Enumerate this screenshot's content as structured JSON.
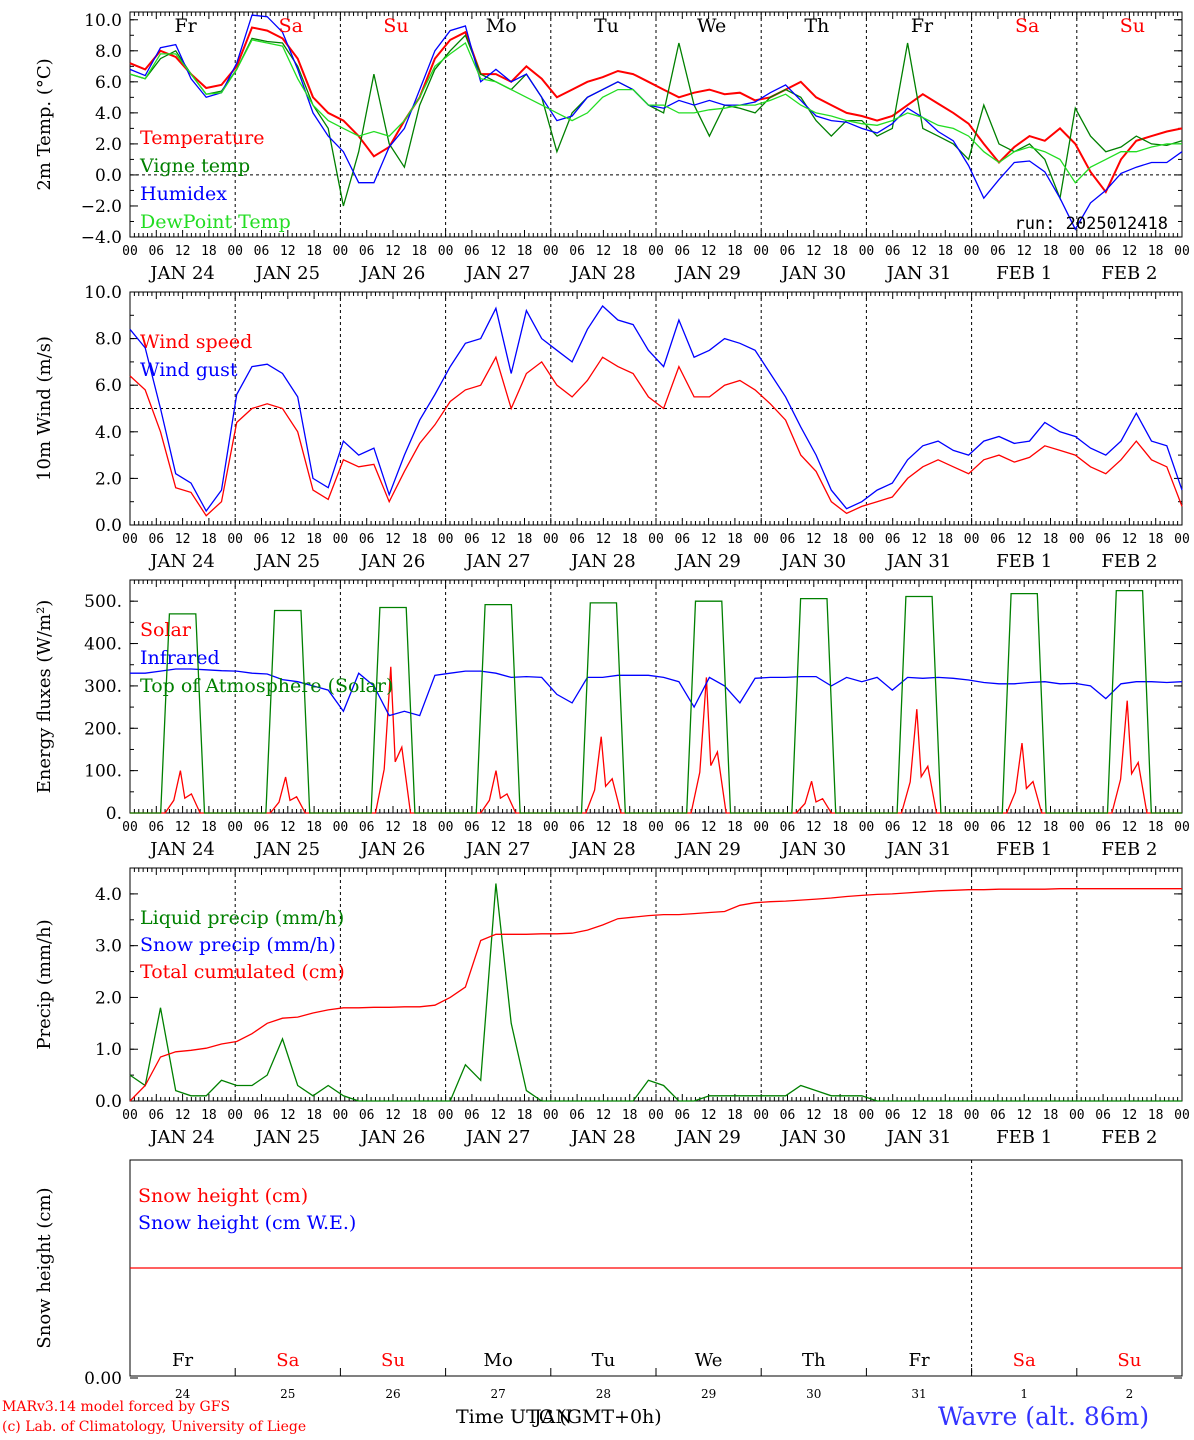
{
  "colors": {
    "red": "#ff0000",
    "green": "#008000",
    "blue": "#0000ff",
    "light_green": "#22dd22",
    "footer_blue": "#3333ff"
  },
  "days": [
    "Fr",
    "Sa",
    "Su",
    "Mo",
    "Tu",
    "We",
    "Th",
    "Fr",
    "Sa",
    "Su"
  ],
  "weekend": [
    false,
    true,
    true,
    false,
    false,
    false,
    false,
    false,
    true,
    true
  ],
  "dates": [
    "JAN 24",
    "JAN 25",
    "JAN 26",
    "JAN 27",
    "JAN 28",
    "JAN 29",
    "JAN 30",
    "JAN 31",
    "FEB  1",
    "FEB  2"
  ],
  "day_numbers": [
    "24",
    "25",
    "26",
    "27",
    "28",
    "29",
    "30",
    "31",
    "1",
    "2"
  ],
  "hour_labels": [
    "00",
    "06",
    "12",
    "18"
  ],
  "hour_label_last": "00",
  "footer": {
    "model": "MARv3.14 model forced by GFS",
    "lab": "(c) Lab. of Climatology, University of Liege",
    "time_axis": "Time UTC (GMT+0h)",
    "time_axis_overlap": "JAN",
    "station": "Wavre (alt. 86m)"
  },
  "chart_data": [
    {
      "type": "line",
      "ylabel": "2m Temp. (°C)",
      "ylim": [
        -4,
        10.5
      ],
      "yticks": [
        "10.0",
        "8.0",
        "6.0",
        "4.0",
        "2.0",
        "0.0",
        "−2.0",
        "−4.0"
      ],
      "run": "run: 2025012418",
      "x_hours_step": 6,
      "series": [
        {
          "name": "Temperature",
          "color": "#ff0000",
          "values": [
            7.2,
            6.8,
            8.0,
            7.6,
            6.5,
            5.6,
            5.8,
            7.0,
            9.5,
            9.3,
            8.8,
            7.5,
            5.0,
            4.0,
            3.5,
            2.5,
            1.2,
            1.8,
            3.5,
            5.0,
            7.5,
            8.7,
            9.2,
            6.5,
            6.5,
            6.0,
            7.0,
            6.2,
            5.0,
            5.5,
            6.0,
            6.3,
            6.7,
            6.5,
            6.0,
            5.5,
            5.0,
            5.3,
            5.5,
            5.2,
            5.3,
            4.8,
            5.0,
            5.5,
            6.0,
            5.0,
            4.5,
            4.0,
            3.8,
            3.5,
            3.8,
            4.5,
            5.2,
            4.6,
            4.0,
            3.3,
            2.0,
            0.8,
            1.8,
            2.5,
            2.2,
            3.0,
            2.0,
            0.2,
            -1.1,
            1.0,
            2.2,
            2.5,
            2.8,
            3.0
          ]
        },
        {
          "name": "Vigne temp",
          "color": "#008000",
          "values": [
            6.5,
            6.2,
            7.5,
            8.0,
            6.5,
            5.2,
            5.4,
            6.8,
            8.8,
            8.6,
            8.5,
            7.0,
            4.5,
            3.0,
            -2.0,
            1.5,
            6.5,
            2.0,
            0.5,
            4.5,
            6.8,
            8.0,
            9.0,
            6.5,
            6.0,
            5.5,
            6.5,
            5.0,
            1.5,
            4.0,
            5.0,
            5.5,
            6.0,
            5.5,
            4.5,
            4.0,
            8.5,
            4.5,
            2.5,
            4.5,
            4.3,
            4.0,
            5.0,
            5.5,
            5.0,
            3.5,
            2.5,
            3.5,
            3.5,
            2.5,
            3.0,
            8.5,
            3.0,
            2.5,
            2.0,
            1.0,
            4.5,
            2.0,
            1.5,
            2.0,
            1.0,
            -1.5,
            4.3,
            2.5,
            1.5,
            1.8,
            2.5,
            2.0,
            1.9,
            2.2
          ]
        },
        {
          "name": "Humidex",
          "color": "#0000ff",
          "values": [
            6.8,
            6.4,
            8.2,
            8.4,
            6.2,
            5.0,
            5.3,
            7.2,
            10.3,
            10.2,
            9.2,
            6.8,
            4.0,
            2.5,
            1.5,
            -0.5,
            -0.5,
            1.8,
            3.0,
            5.5,
            8.0,
            9.3,
            9.6,
            6.0,
            6.8,
            6.0,
            6.5,
            5.0,
            3.5,
            3.8,
            5.0,
            5.5,
            6.0,
            5.5,
            4.5,
            4.3,
            4.8,
            4.5,
            4.8,
            4.5,
            4.5,
            4.7,
            5.3,
            5.8,
            4.8,
            3.8,
            3.5,
            3.4,
            3.0,
            2.7,
            3.3,
            4.3,
            3.7,
            2.8,
            2.2,
            0.6,
            -1.5,
            -0.3,
            0.8,
            0.9,
            0.2,
            -1.5,
            -3.5,
            -1.8,
            -1.0,
            0.1,
            0.5,
            0.8,
            0.8,
            1.5
          ]
        },
        {
          "name": "DewPoint Temp",
          "color": "#22dd22",
          "values": [
            6.5,
            6.2,
            7.8,
            7.8,
            6.5,
            5.2,
            5.3,
            6.8,
            8.7,
            8.5,
            8.3,
            6.2,
            4.5,
            3.5,
            3.0,
            2.5,
            2.8,
            2.5,
            3.5,
            5.0,
            7.0,
            7.8,
            8.5,
            6.2,
            6.0,
            5.5,
            5.0,
            4.5,
            4.0,
            3.5,
            4.0,
            5.0,
            5.5,
            5.5,
            4.5,
            4.5,
            4.0,
            4.0,
            4.2,
            4.3,
            4.5,
            4.5,
            4.8,
            5.2,
            4.5,
            4.0,
            3.8,
            3.5,
            3.3,
            3.2,
            3.5,
            4.0,
            3.7,
            3.2,
            3.0,
            2.5,
            1.5,
            0.8,
            1.5,
            1.8,
            1.5,
            1.0,
            -0.5,
            0.5,
            1.0,
            1.5,
            1.5,
            1.8,
            2.0,
            2.0
          ]
        }
      ],
      "ref_line": 0
    },
    {
      "type": "line",
      "ylabel": "10m Wind (m/s)",
      "ylim": [
        0,
        10
      ],
      "yticks": [
        "10.0",
        "8.0",
        "6.0",
        "4.0",
        "2.0",
        "0.0"
      ],
      "ref_line": 5,
      "series": [
        {
          "name": "Wind speed",
          "color": "#ff0000",
          "values": [
            6.4,
            5.8,
            4.0,
            1.6,
            1.4,
            0.4,
            1.0,
            4.4,
            5.0,
            5.2,
            5.0,
            4.0,
            1.5,
            1.1,
            2.8,
            2.5,
            2.6,
            1.0,
            2.3,
            3.5,
            4.3,
            5.3,
            5.8,
            6.0,
            7.2,
            5.0,
            6.5,
            7.0,
            6.0,
            5.5,
            6.2,
            7.2,
            6.8,
            6.5,
            5.5,
            5.0,
            6.8,
            5.5,
            5.5,
            6.0,
            6.2,
            5.8,
            5.2,
            4.5,
            3.0,
            2.3,
            1.0,
            0.5,
            0.8,
            1.0,
            1.2,
            2.0,
            2.5,
            2.8,
            2.5,
            2.2,
            2.8,
            3.0,
            2.7,
            2.9,
            3.4,
            3.2,
            3.0,
            2.5,
            2.2,
            2.8,
            3.6,
            2.8,
            2.5,
            0.8
          ]
        },
        {
          "name": "Wind gust",
          "color": "#0000ff",
          "values": [
            8.4,
            7.6,
            5.0,
            2.2,
            1.8,
            0.6,
            1.5,
            5.6,
            6.8,
            6.9,
            6.5,
            5.5,
            2.0,
            1.6,
            3.6,
            3.0,
            3.3,
            1.3,
            3.0,
            4.5,
            5.6,
            6.8,
            7.8,
            8.0,
            9.3,
            6.5,
            9.2,
            8.0,
            7.5,
            7.0,
            8.4,
            9.4,
            8.8,
            8.6,
            7.5,
            6.8,
            8.8,
            7.2,
            7.5,
            8.0,
            7.8,
            7.5,
            6.5,
            5.5,
            4.2,
            3.0,
            1.5,
            0.7,
            1.0,
            1.5,
            1.8,
            2.8,
            3.4,
            3.6,
            3.2,
            3.0,
            3.6,
            3.8,
            3.5,
            3.6,
            4.4,
            4.0,
            3.8,
            3.3,
            3.0,
            3.6,
            4.8,
            3.6,
            3.4,
            1.5
          ]
        }
      ]
    },
    {
      "type": "line",
      "ylabel": "Energy fluxes (W/m²)",
      "ylim": [
        0,
        550
      ],
      "yticks": [
        "500.",
        "400.",
        "300.",
        "200.",
        "100.",
        "0."
      ],
      "series": [
        {
          "name": "Solar",
          "color": "#ff0000",
          "peaks": [
            100,
            85,
            345,
            100,
            180,
            320,
            75,
            245,
            165,
            265
          ]
        },
        {
          "name": "Infrared",
          "color": "#0000ff",
          "values": [
            330,
            330,
            335,
            340,
            340,
            338,
            336,
            335,
            330,
            328,
            315,
            310,
            300,
            290,
            240,
            330,
            300,
            230,
            240,
            230,
            325,
            330,
            335,
            335,
            330,
            320,
            322,
            320,
            280,
            260,
            320,
            320,
            325,
            325,
            325,
            320,
            310,
            250,
            320,
            300,
            260,
            318,
            320,
            320,
            322,
            322,
            300,
            320,
            310,
            320,
            290,
            320,
            318,
            320,
            318,
            314,
            308,
            305,
            305,
            308,
            310,
            305,
            306,
            300,
            270,
            305,
            310,
            310,
            308,
            310
          ]
        },
        {
          "name": "Top of Atmosphere (Solar)",
          "color": "#008000",
          "peaks": [
            470,
            478,
            485,
            492,
            496,
            500,
            506,
            511,
            518,
            525
          ]
        }
      ]
    },
    {
      "type": "line",
      "ylabel": "Precip (mm/h)",
      "ylim": [
        0,
        4.5
      ],
      "yticks": [
        "4.0",
        "3.0",
        "2.0",
        "1.0",
        "0.0"
      ],
      "series": [
        {
          "name": "Liquid precip (mm/h)",
          "color": "#008000",
          "values": [
            0.5,
            0.3,
            1.8,
            0.2,
            0.1,
            0.1,
            0.4,
            0.3,
            0.3,
            0.5,
            1.2,
            0.3,
            0.1,
            0.3,
            0.1,
            0.0,
            0.0,
            0.0,
            0.0,
            0.0,
            0.0,
            0.0,
            0.7,
            0.4,
            4.2,
            1.5,
            0.2,
            0.0,
            0.0,
            0.0,
            0.0,
            0.0,
            0.0,
            0.0,
            0.4,
            0.3,
            0.0,
            0.0,
            0.1,
            0.1,
            0.1,
            0.1,
            0.1,
            0.1,
            0.3,
            0.2,
            0.1,
            0.1,
            0.1,
            0.0,
            0.0,
            0.0,
            0.0,
            0.0,
            0.0,
            0.0,
            0.0,
            0.0,
            0.0,
            0.0,
            0.0,
            0.0,
            0.0,
            0.0,
            0.0,
            0.0,
            0.0,
            0.0,
            0.0,
            0.0
          ]
        },
        {
          "name": "Snow precip (mm/h)",
          "color": "#0000ff",
          "values": []
        },
        {
          "name": "Total cumulated (cm)",
          "color": "#ff0000",
          "values": [
            0.0,
            0.3,
            0.85,
            0.95,
            0.98,
            1.02,
            1.1,
            1.15,
            1.3,
            1.5,
            1.6,
            1.62,
            1.7,
            1.76,
            1.8,
            1.8,
            1.81,
            1.81,
            1.82,
            1.82,
            1.85,
            2.0,
            2.2,
            3.1,
            3.22,
            3.22,
            3.22,
            3.23,
            3.23,
            3.24,
            3.3,
            3.4,
            3.52,
            3.55,
            3.58,
            3.6,
            3.6,
            3.62,
            3.64,
            3.66,
            3.78,
            3.83,
            3.85,
            3.86,
            3.88,
            3.9,
            3.92,
            3.95,
            3.97,
            3.99,
            4.0,
            4.02,
            4.04,
            4.06,
            4.07,
            4.08,
            4.08,
            4.09,
            4.09,
            4.09,
            4.09,
            4.1,
            4.1,
            4.1,
            4.1,
            4.1,
            4.1,
            4.1,
            4.1,
            4.1
          ]
        }
      ]
    },
    {
      "type": "line",
      "ylabel": "Snow height (cm)",
      "yticks": [
        "0.00"
      ],
      "series": [
        {
          "name": "Snow height (cm)",
          "color": "#ff0000",
          "values": [
            0,
            0
          ]
        },
        {
          "name": "Snow height (cm W.E.)",
          "color": "#0000ff",
          "values": []
        }
      ]
    }
  ]
}
